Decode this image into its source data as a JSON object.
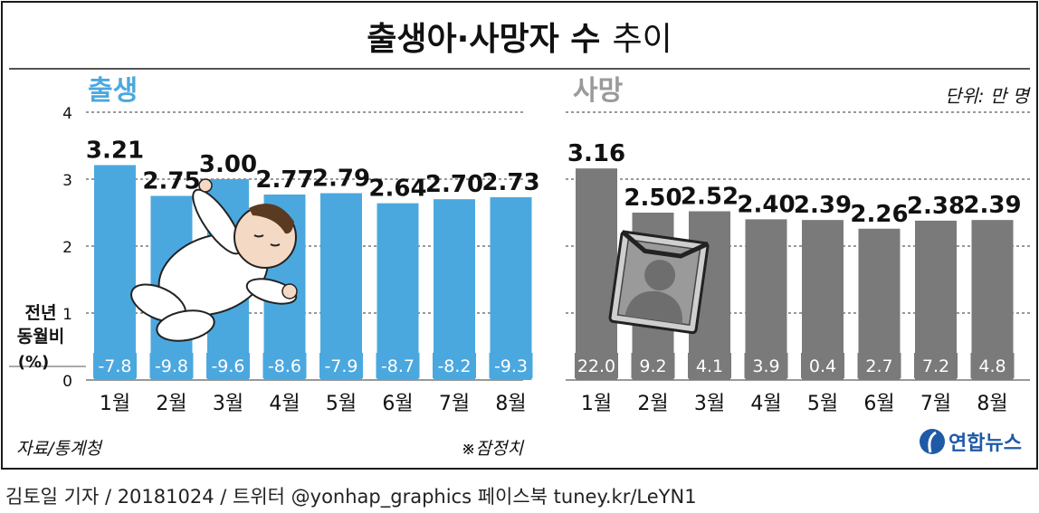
{
  "title_main": "출생아·사망자 수",
  "title_sub": "추이",
  "unit": "단위: 만 명",
  "yoy_label": [
    "전년",
    "동월비",
    "(%)"
  ],
  "source": "자료/통계청",
  "provisional": "※잠정치",
  "logo_text": "연합뉴스",
  "credit": "김토일 기자 / 20181024 / 트위터 @yonhap_graphics  페이스북 tuney.kr/LeYN1",
  "colors": {
    "birth": "#4ba8df",
    "death": "#7a7a7a",
    "frame": "#1a1a1a",
    "grid": "#333333",
    "logo": "#1f5aa6"
  },
  "icons": {
    "birth": "baby-illustration",
    "death": "memorial-portrait-illustration",
    "logo": "yonhap-logo-icon"
  },
  "chart_data": [
    {
      "type": "bar",
      "panel_label": "출생",
      "categories": [
        "1월",
        "2월",
        "3월",
        "4월",
        "5월",
        "6월",
        "7월",
        "8월"
      ],
      "values": [
        3.21,
        2.75,
        3.0,
        2.77,
        2.79,
        2.64,
        2.7,
        2.73
      ],
      "value_labels": [
        "3.21",
        "2.75",
        "3.00",
        "2.77",
        "2.79",
        "2.64",
        "2.70",
        "2.73"
      ],
      "yoy_change": [
        "-7.8",
        "-9.8",
        "-9.6",
        "-8.6",
        "-7.9",
        "-8.7",
        "-8.2",
        "-9.3"
      ],
      "ylim": [
        0,
        4
      ],
      "yticks": [
        "0",
        "1",
        "2",
        "3",
        "4"
      ],
      "grid": true
    },
    {
      "type": "bar",
      "panel_label": "사망",
      "categories": [
        "1월",
        "2월",
        "3월",
        "4월",
        "5월",
        "6월",
        "7월",
        "8월"
      ],
      "values": [
        3.16,
        2.5,
        2.52,
        2.4,
        2.39,
        2.26,
        2.38,
        2.39
      ],
      "value_labels": [
        "3.16",
        "2.50",
        "2.52",
        "2.40",
        "2.39",
        "2.26",
        "2.38",
        "2.39"
      ],
      "yoy_change": [
        "22.0",
        "9.2",
        "4.1",
        "3.9",
        "0.4",
        "2.7",
        "7.2",
        "4.8"
      ],
      "ylim": [
        0,
        4
      ],
      "grid": true
    }
  ]
}
